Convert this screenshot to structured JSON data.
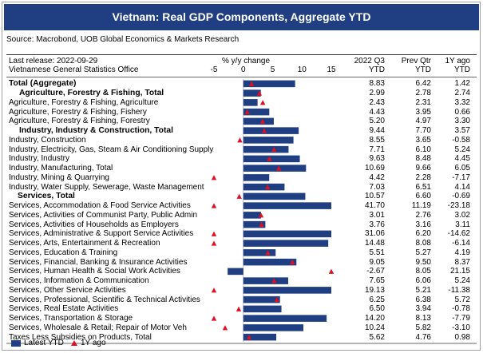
{
  "title": "Vietnam: Real GDP Components, Aggregate YTD",
  "source": "Source: Macrobond, UOB Global Economics & Markets Research",
  "header": {
    "last_release": "Last release: 2022-09-29",
    "office": "Vietnamese General Statistics Office",
    "axis_title": "% y/y change",
    "col1_line1": "2022 Q3",
    "col1_line2": "YTD",
    "col2_line1": "Prev Qtr",
    "col2_line2": "YTD",
    "col3_line1": "1Y ago",
    "col3_line2": "YTD"
  },
  "colors": {
    "title_bg": "#1f3f82",
    "bar": "#1f3f82",
    "marker": "#e01020"
  },
  "legend": {
    "bar_label": "Latest YTD",
    "marker_label": "1Y ago"
  },
  "chart_data": {
    "type": "bar",
    "orientation": "horizontal",
    "xlim": [
      -5,
      15
    ],
    "ticks": [
      "-5",
      "0",
      "5",
      "10",
      "15"
    ],
    "series": [
      {
        "name": "Latest YTD",
        "mark": "bar"
      },
      {
        "name": "1Y ago",
        "mark": "triangle"
      }
    ],
    "rows": [
      {
        "label": "Total (Aggregate)",
        "bold": true,
        "latest": "8.83",
        "prev": "6.42",
        "ago": "1.42"
      },
      {
        "label": "Agriculture, Forestry & Fishing, Total",
        "bold": true,
        "latest": "2.99",
        "prev": "2.78",
        "ago": "2.74"
      },
      {
        "label": "Agriculture, Forestry & Fishing, Agriculture",
        "bold": false,
        "latest": "2.43",
        "prev": "2.31",
        "ago": "3.32"
      },
      {
        "label": "Agriculture, Forestry & Fishing, Fishery",
        "bold": false,
        "latest": "4.43",
        "prev": "3.95",
        "ago": "0.66"
      },
      {
        "label": "Agriculture, Forestry & Fishing, Forestry",
        "bold": false,
        "latest": "5.20",
        "prev": "4.97",
        "ago": "3.30"
      },
      {
        "label": "Industry, Industry & Construction, Total",
        "bold": true,
        "latest": "9.44",
        "prev": "7.70",
        "ago": "3.57"
      },
      {
        "label": "Industry, Construction",
        "bold": false,
        "latest": "8.55",
        "prev": "3.65",
        "ago": "-0.58"
      },
      {
        "label": "Industry, Electricity, Gas, Steam & Air Conditioning Supply",
        "bold": false,
        "latest": "7.71",
        "prev": "6.10",
        "ago": "5.24"
      },
      {
        "label": "Industry, Industry",
        "bold": false,
        "latest": "9.63",
        "prev": "8.48",
        "ago": "4.45"
      },
      {
        "label": "Industry, Manufacturing, Total",
        "bold": false,
        "latest": "10.69",
        "prev": "9.66",
        "ago": "6.05"
      },
      {
        "label": "Industry, Mining & Quarrying",
        "bold": false,
        "latest": "4.42",
        "prev": "2.28",
        "ago": "-7.17"
      },
      {
        "label": "Industry, Water Supply, Sewerage, Waste Management",
        "bold": false,
        "latest": "7.03",
        "prev": "6.51",
        "ago": "4.14"
      },
      {
        "label": "Services, Total",
        "bold": true,
        "latest": "10.57",
        "prev": "6.60",
        "ago": "-0.69"
      },
      {
        "label": "Services, Accommodation & Food Service Activities",
        "bold": false,
        "latest": "41.70",
        "prev": "11.19",
        "ago": "-23.18"
      },
      {
        "label": "Services, Activities of Communist Party, Public Admin",
        "bold": false,
        "latest": "3.01",
        "prev": "2.76",
        "ago": "3.02"
      },
      {
        "label": "Services, Activities of Households as Employers",
        "bold": false,
        "latest": "3.76",
        "prev": "3.16",
        "ago": "3.11"
      },
      {
        "label": "Services, Administrative & Support Service Activities",
        "bold": false,
        "latest": "31.06",
        "prev": "6.20",
        "ago": "-14.62"
      },
      {
        "label": "Services, Arts, Entertainment & Recreation",
        "bold": false,
        "latest": "14.48",
        "prev": "8.08",
        "ago": "-6.14"
      },
      {
        "label": "Services, Education & Training",
        "bold": false,
        "latest": "5.51",
        "prev": "5.27",
        "ago": "4.19"
      },
      {
        "label": "Services, Financial, Banking & Insurance Activities",
        "bold": false,
        "latest": "9.05",
        "prev": "9.50",
        "ago": "8.37"
      },
      {
        "label": "Services, Human Health & Social Work Activities",
        "bold": false,
        "latest": "-2.67",
        "prev": "8.05",
        "ago": "21.15"
      },
      {
        "label": "Services, Information & Communication",
        "bold": false,
        "latest": "7.65",
        "prev": "6.06",
        "ago": "5.24"
      },
      {
        "label": "Services, Other Service Activities",
        "bold": false,
        "latest": "19.13",
        "prev": "5.21",
        "ago": "-11.38"
      },
      {
        "label": "Services, Professional, Scientific & Technical Activities",
        "bold": false,
        "latest": "6.25",
        "prev": "6.38",
        "ago": "5.72"
      },
      {
        "label": "Services, Real Estate Activities",
        "bold": false,
        "latest": "6.50",
        "prev": "3.94",
        "ago": "-0.78"
      },
      {
        "label": "Services, Transportation & Storage",
        "bold": false,
        "latest": "14.20",
        "prev": "8.13",
        "ago": "-7.79"
      },
      {
        "label": "Services, Wholesale & Retail; Repair of Motor Veh",
        "bold": false,
        "latest": "10.24",
        "prev": "5.82",
        "ago": "-3.10"
      },
      {
        "label": "Taxes Less Subsidies on Products, Total",
        "bold": false,
        "latest": "5.62",
        "prev": "4.76",
        "ago": "0.98"
      }
    ]
  }
}
